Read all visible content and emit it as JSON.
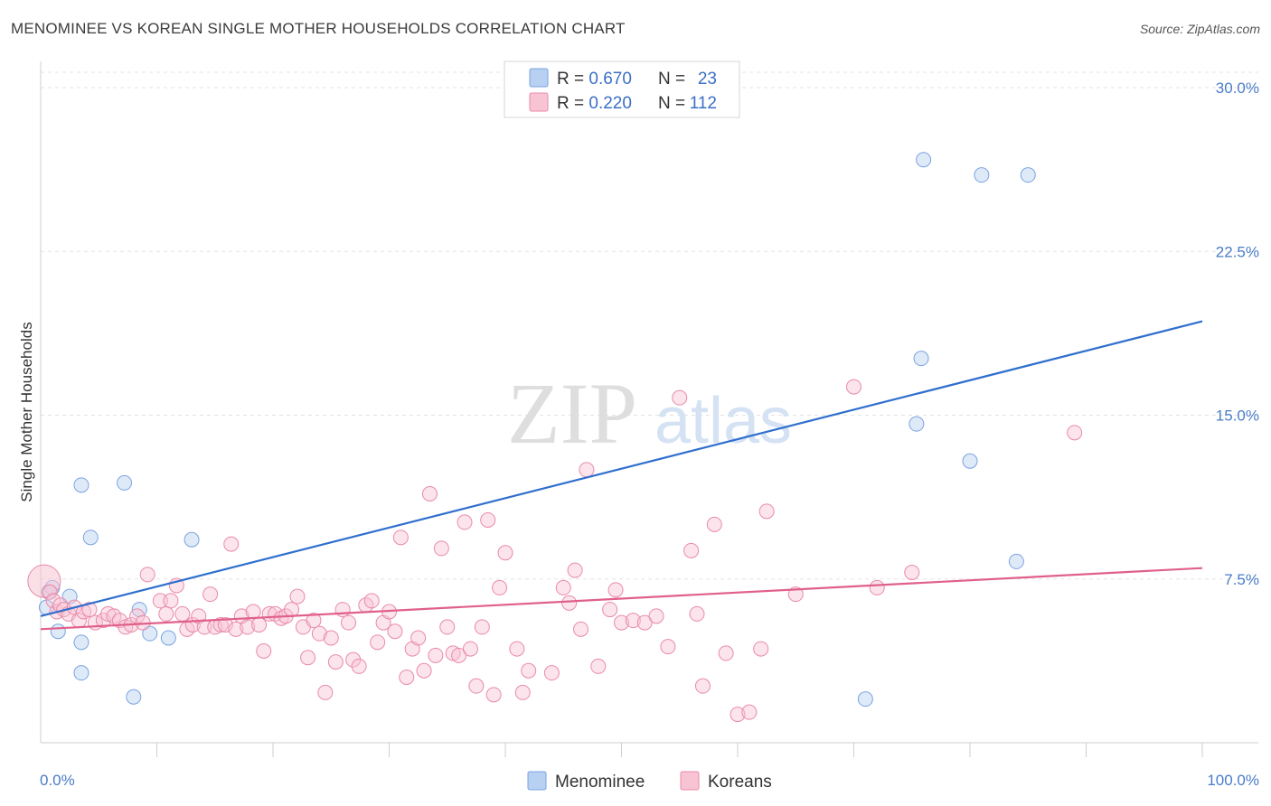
{
  "title": "MENOMINEE VS KOREAN SINGLE MOTHER HOUSEHOLDS CORRELATION CHART",
  "source": "Source: ZipAtlas.com",
  "watermark": {
    "zip": "ZIP",
    "atlas": "atlas"
  },
  "legend_top": [
    {
      "r_label": "R = ",
      "r_value": "0.670",
      "n_label": "N = ",
      "n_value": "23",
      "fill": "#b8d0f2",
      "stroke": "#7aa3e0"
    },
    {
      "r_label": "R = ",
      "r_value": "0.220",
      "n_label": "N = ",
      "n_value": "112",
      "fill": "#f8c4d4",
      "stroke": "#e98aa8"
    }
  ],
  "chart_data": {
    "type": "scatter",
    "xlabel": "",
    "ylabel": "Single Mother Households",
    "xlim": [
      0,
      100
    ],
    "ylim": [
      0,
      31
    ],
    "x_tick_labels": [
      "0.0%",
      "100.0%"
    ],
    "y_ticks": [
      7.5,
      15.0,
      22.5,
      30.0
    ],
    "y_tick_labels": [
      "7.5%",
      "15.0%",
      "22.5%",
      "30.0%"
    ],
    "grid": true,
    "legend_placement": "bottom-center",
    "series": [
      {
        "name": "Menominee",
        "color": "#7aa3e0",
        "fill": "#b8d0f2",
        "line_color": "#2f6fcd",
        "trend": [
          [
            0,
            5.8
          ],
          [
            100,
            19.3
          ]
        ],
        "points": [
          [
            0.5,
            6.2
          ],
          [
            0.7,
            6.9
          ],
          [
            1.0,
            7.1
          ],
          [
            1.5,
            5.1
          ],
          [
            2.5,
            6.7
          ],
          [
            3.5,
            4.6
          ],
          [
            3.5,
            3.2
          ],
          [
            3.5,
            11.8
          ],
          [
            4.3,
            9.4
          ],
          [
            7.2,
            11.9
          ],
          [
            8.0,
            2.1
          ],
          [
            8.5,
            6.1
          ],
          [
            9.4,
            5.0
          ],
          [
            11.0,
            4.8
          ],
          [
            13.0,
            9.3
          ],
          [
            71.0,
            2.0
          ],
          [
            75.4,
            14.6
          ],
          [
            75.8,
            17.6
          ],
          [
            76.0,
            26.7
          ],
          [
            80.0,
            12.9
          ],
          [
            81.0,
            26.0
          ],
          [
            84.0,
            8.3
          ],
          [
            85.0,
            26.0
          ]
        ]
      },
      {
        "name": "Koreans",
        "color": "#e98aa8",
        "fill": "#f8c4d4",
        "line_color": "#e0608a",
        "trend": [
          [
            0,
            5.2
          ],
          [
            100,
            8.0
          ]
        ],
        "points": [
          [
            0.3,
            7.4
          ],
          [
            0.8,
            6.9
          ],
          [
            1.1,
            6.5
          ],
          [
            1.4,
            6.0
          ],
          [
            1.7,
            6.3
          ],
          [
            2.0,
            6.1
          ],
          [
            2.4,
            5.9
          ],
          [
            2.9,
            6.2
          ],
          [
            3.3,
            5.6
          ],
          [
            3.7,
            6.0
          ],
          [
            4.2,
            6.1
          ],
          [
            4.7,
            5.5
          ],
          [
            5.4,
            5.6
          ],
          [
            5.8,
            5.9
          ],
          [
            6.3,
            5.8
          ],
          [
            6.8,
            5.6
          ],
          [
            7.3,
            5.3
          ],
          [
            7.8,
            5.4
          ],
          [
            8.3,
            5.8
          ],
          [
            8.8,
            5.5
          ],
          [
            9.2,
            7.7
          ],
          [
            10.3,
            6.5
          ],
          [
            10.8,
            5.9
          ],
          [
            11.2,
            6.5
          ],
          [
            11.7,
            7.2
          ],
          [
            12.2,
            5.9
          ],
          [
            12.6,
            5.2
          ],
          [
            13.1,
            5.4
          ],
          [
            13.6,
            5.8
          ],
          [
            14.1,
            5.3
          ],
          [
            14.6,
            6.8
          ],
          [
            15.0,
            5.3
          ],
          [
            15.5,
            5.4
          ],
          [
            15.9,
            5.4
          ],
          [
            16.4,
            9.1
          ],
          [
            16.8,
            5.2
          ],
          [
            17.3,
            5.8
          ],
          [
            17.8,
            5.3
          ],
          [
            18.3,
            6.0
          ],
          [
            18.8,
            5.4
          ],
          [
            19.2,
            4.2
          ],
          [
            19.7,
            5.9
          ],
          [
            20.2,
            5.9
          ],
          [
            20.7,
            5.7
          ],
          [
            21.1,
            5.8
          ],
          [
            21.6,
            6.1
          ],
          [
            22.1,
            6.7
          ],
          [
            22.6,
            5.3
          ],
          [
            23.0,
            3.9
          ],
          [
            23.5,
            5.6
          ],
          [
            24.0,
            5.0
          ],
          [
            24.5,
            2.3
          ],
          [
            25.0,
            4.8
          ],
          [
            25.4,
            3.7
          ],
          [
            26.0,
            6.1
          ],
          [
            26.5,
            5.5
          ],
          [
            26.9,
            3.8
          ],
          [
            27.4,
            3.5
          ],
          [
            28.0,
            6.3
          ],
          [
            28.5,
            6.5
          ],
          [
            29.0,
            4.6
          ],
          [
            29.5,
            5.5
          ],
          [
            30.0,
            6.0
          ],
          [
            30.5,
            5.1
          ],
          [
            31.0,
            9.4
          ],
          [
            31.5,
            3.0
          ],
          [
            32.0,
            4.3
          ],
          [
            32.5,
            4.8
          ],
          [
            33.0,
            3.3
          ],
          [
            33.5,
            11.4
          ],
          [
            34.0,
            4.0
          ],
          [
            34.5,
            8.9
          ],
          [
            35.0,
            5.3
          ],
          [
            35.5,
            4.1
          ],
          [
            36.0,
            4.0
          ],
          [
            36.5,
            10.1
          ],
          [
            37.0,
            4.3
          ],
          [
            37.5,
            2.6
          ],
          [
            38.0,
            5.3
          ],
          [
            38.5,
            10.2
          ],
          [
            39.0,
            2.2
          ],
          [
            39.5,
            7.1
          ],
          [
            40.0,
            8.7
          ],
          [
            41.0,
            4.3
          ],
          [
            41.5,
            2.3
          ],
          [
            42.0,
            3.3
          ],
          [
            44.0,
            3.2
          ],
          [
            45.0,
            7.1
          ],
          [
            45.5,
            6.4
          ],
          [
            46.0,
            7.9
          ],
          [
            46.5,
            5.2
          ],
          [
            47.0,
            12.5
          ],
          [
            48.0,
            3.5
          ],
          [
            49.0,
            6.1
          ],
          [
            49.5,
            7.0
          ],
          [
            50.0,
            5.5
          ],
          [
            51.0,
            5.6
          ],
          [
            52.0,
            5.5
          ],
          [
            53.0,
            5.8
          ],
          [
            54.0,
            4.4
          ],
          [
            55.0,
            15.8
          ],
          [
            56.0,
            8.8
          ],
          [
            56.5,
            5.9
          ],
          [
            57.0,
            2.6
          ],
          [
            58.0,
            10.0
          ],
          [
            59.0,
            4.1
          ],
          [
            60.0,
            1.3
          ],
          [
            61.0,
            1.4
          ],
          [
            62.0,
            4.3
          ],
          [
            62.5,
            10.6
          ],
          [
            65.0,
            6.8
          ],
          [
            70.0,
            16.3
          ],
          [
            72.0,
            7.1
          ],
          [
            75.0,
            7.8
          ],
          [
            89.0,
            14.2
          ]
        ]
      }
    ]
  }
}
